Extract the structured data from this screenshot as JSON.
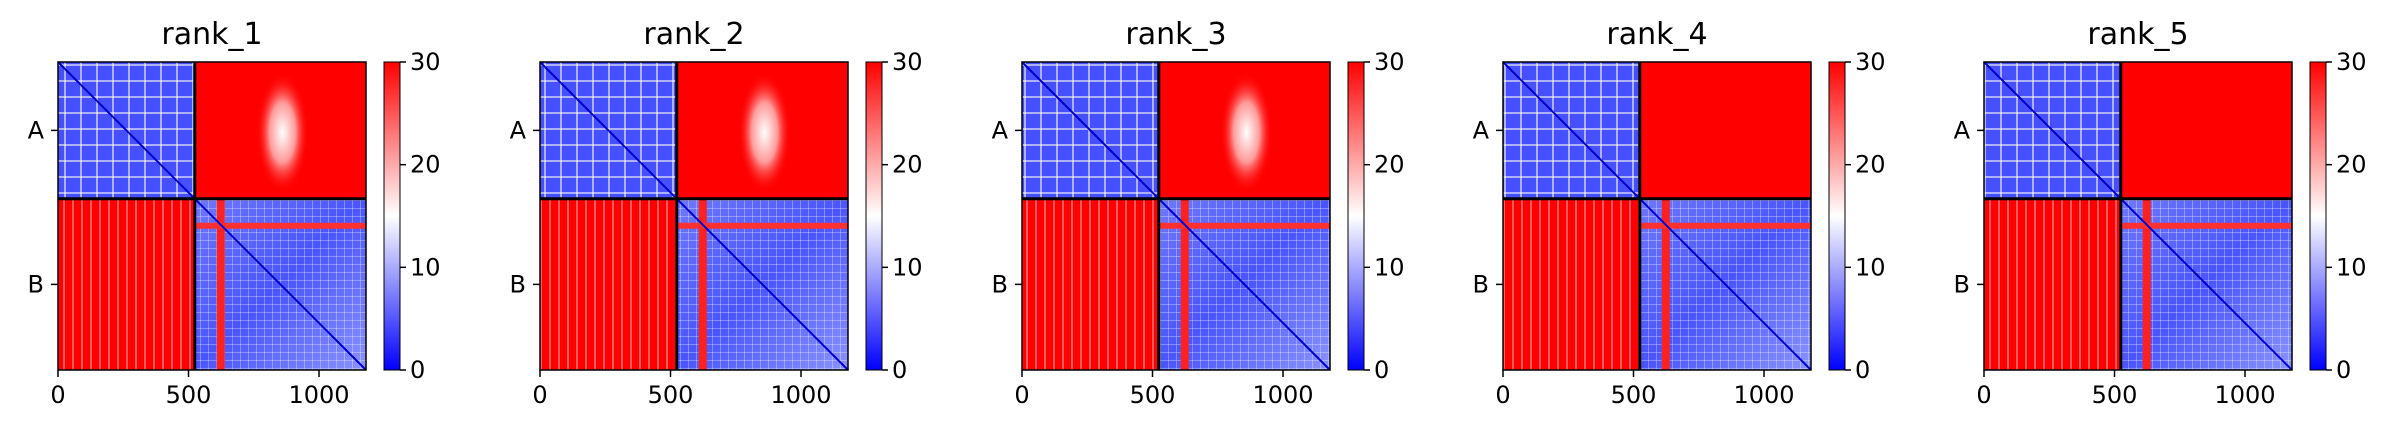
{
  "chart_data": [
    {
      "type": "heatmap",
      "title": "rank_1",
      "xticks": [
        0,
        500,
        1000
      ],
      "xlim": [
        0,
        1180
      ],
      "yticks": [
        "A",
        "B"
      ],
      "chain_boundary": 524,
      "chain_lengths": {
        "A": 524,
        "B": 656
      },
      "colorbar": {
        "min": 0,
        "max": 30,
        "ticks": [
          0,
          10,
          20,
          30
        ],
        "colors": [
          "#0000ff",
          "#ffffff",
          "#ff0000"
        ]
      },
      "interchain_hotspot": {
        "x": 860,
        "y": 270
      }
    },
    {
      "type": "heatmap",
      "title": "rank_2",
      "xticks": [
        0,
        500,
        1000
      ],
      "xlim": [
        0,
        1180
      ],
      "yticks": [
        "A",
        "B"
      ],
      "chain_boundary": 524,
      "chain_lengths": {
        "A": 524,
        "B": 656
      },
      "colorbar": {
        "min": 0,
        "max": 30,
        "ticks": [
          0,
          10,
          20,
          30
        ],
        "colors": [
          "#0000ff",
          "#ffffff",
          "#ff0000"
        ]
      },
      "interchain_hotspot": {
        "x": 860,
        "y": 270
      }
    },
    {
      "type": "heatmap",
      "title": "rank_3",
      "xticks": [
        0,
        500,
        1000
      ],
      "xlim": [
        0,
        1180
      ],
      "yticks": [
        "A",
        "B"
      ],
      "chain_boundary": 524,
      "chain_lengths": {
        "A": 524,
        "B": 656
      },
      "colorbar": {
        "min": 0,
        "max": 30,
        "ticks": [
          0,
          10,
          20,
          30
        ],
        "colors": [
          "#0000ff",
          "#ffffff",
          "#ff0000"
        ]
      },
      "interchain_hotspot": {
        "x": 860,
        "y": 270
      }
    },
    {
      "type": "heatmap",
      "title": "rank_4",
      "xticks": [
        0,
        500,
        1000
      ],
      "xlim": [
        0,
        1180
      ],
      "yticks": [
        "A",
        "B"
      ],
      "chain_boundary": 524,
      "chain_lengths": {
        "A": 524,
        "B": 656
      },
      "colorbar": {
        "min": 0,
        "max": 30,
        "ticks": [
          0,
          10,
          20,
          30
        ],
        "colors": [
          "#0000ff",
          "#ffffff",
          "#ff0000"
        ]
      },
      "interchain_hotspot": null
    },
    {
      "type": "heatmap",
      "title": "rank_5",
      "xticks": [
        0,
        500,
        1000
      ],
      "xlim": [
        0,
        1180
      ],
      "yticks": [
        "A",
        "B"
      ],
      "chain_boundary": 524,
      "chain_lengths": {
        "A": 524,
        "B": 656
      },
      "colorbar": {
        "min": 0,
        "max": 30,
        "ticks": [
          0,
          10,
          20,
          30
        ],
        "colors": [
          "#0000ff",
          "#ffffff",
          "#ff0000"
        ]
      },
      "interchain_hotspot": null
    }
  ]
}
